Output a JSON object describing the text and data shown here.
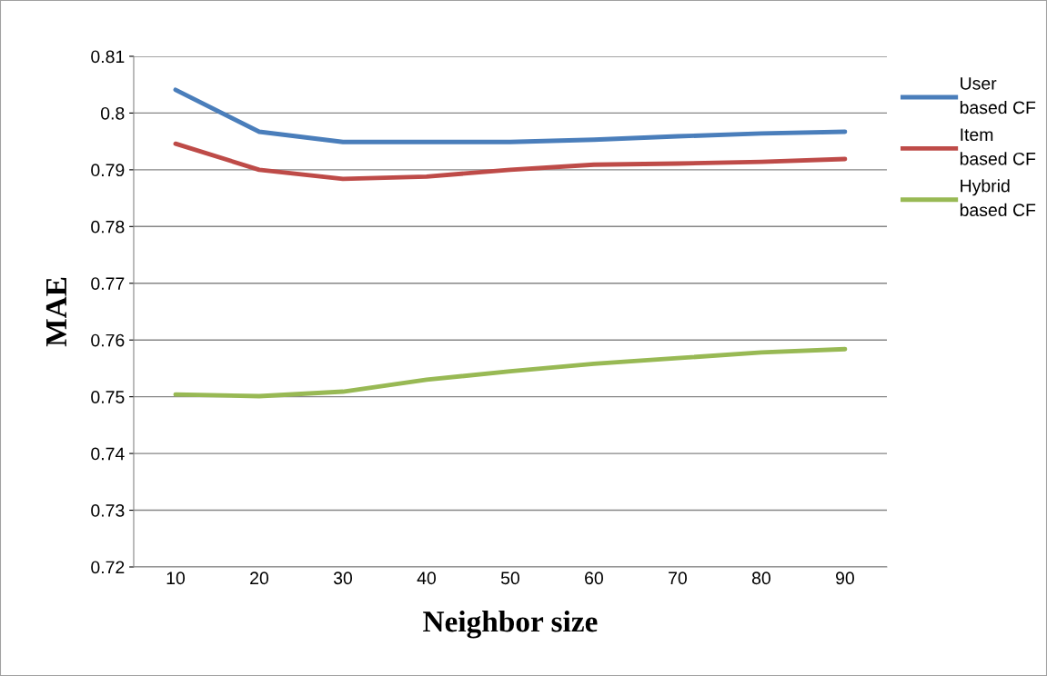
{
  "chart_data": {
    "type": "line",
    "xlabel": "Neighbor size",
    "ylabel": "MAE",
    "categories": [
      "10",
      "20",
      "30",
      "40",
      "50",
      "60",
      "70",
      "80",
      "90"
    ],
    "series": [
      {
        "name": "User based CF",
        "color": "#4a7ebb",
        "values": [
          0.8041,
          0.7967,
          0.7949,
          0.7949,
          0.7949,
          0.7953,
          0.7959,
          0.7964,
          0.7967
        ]
      },
      {
        "name": "Item based CF",
        "color": "#be4b48",
        "values": [
          0.7946,
          0.79,
          0.7884,
          0.7888,
          0.79,
          0.7909,
          0.7911,
          0.7914,
          0.7919
        ]
      },
      {
        "name": "Hybrid based CF",
        "color": "#98b954",
        "values": [
          0.7504,
          0.7501,
          0.7509,
          0.753,
          0.7545,
          0.7558,
          0.7568,
          0.7578,
          0.7584
        ]
      }
    ],
    "ylim": [
      0.72,
      0.81
    ],
    "yticks": [
      0.72,
      0.73,
      0.74,
      0.75,
      0.76,
      0.77,
      0.78,
      0.79,
      0.8,
      0.81
    ],
    "grid": "y",
    "legend": "right",
    "marker": "none",
    "line_style": "solid"
  }
}
